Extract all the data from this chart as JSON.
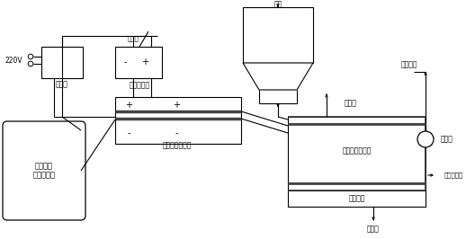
{
  "bg_color": "#ffffff",
  "lc": "#000000",
  "gray": "#555555",
  "labels": {
    "v220": "220V",
    "rectifier": "整流器",
    "voltage_reg": "稳压器",
    "hv_dc": "高压直流电",
    "waste_sand": "废砂",
    "water_steam": "水蒸气",
    "plasma_gen": "热等离子发生器",
    "plasma_chamber": "热等离子燃烧室",
    "water_jacket": "水冷夹套",
    "cooling_water": "冷却水",
    "exhaust": "尾气处理",
    "fan": "引风机",
    "separator": "去筛分工段",
    "compressed_gas": "压缩空气\n或惰性气体"
  }
}
